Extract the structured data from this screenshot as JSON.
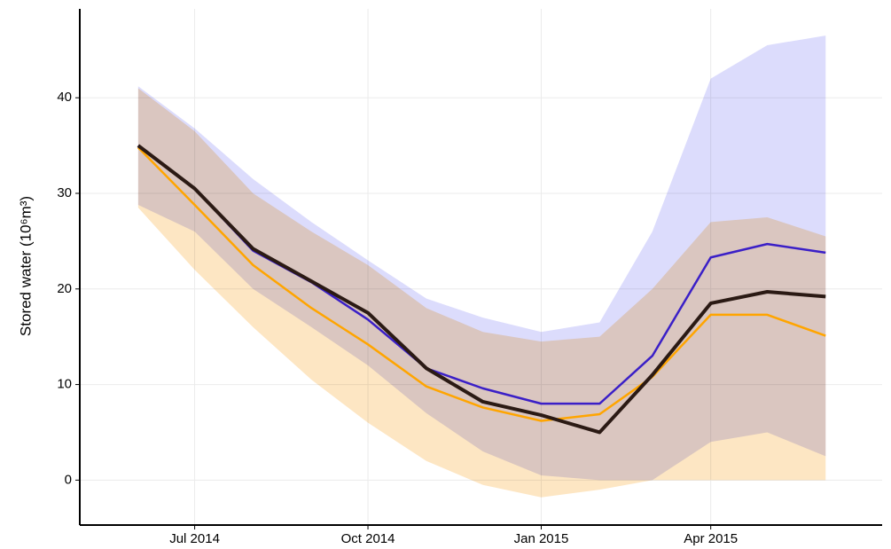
{
  "chart_data": {
    "type": "line",
    "y_label": "Stored water (10⁶m³)",
    "x": [
      "2014-06",
      "2014-07",
      "2014-08",
      "2014-09",
      "2014-10",
      "2014-11",
      "2014-12",
      "2015-01",
      "2015-02",
      "2015-03",
      "2015-04",
      "2015-05",
      "2015-06"
    ],
    "series": [
      {
        "color": "#3a1fc7",
        "band_color": "#dcdcfc",
        "values": [
          35,
          30.5,
          24,
          20.7,
          16.8,
          11.7,
          9.6,
          8.0,
          8.0,
          13,
          23.3,
          24.7,
          23.8
        ],
        "lower": [
          28.8,
          26,
          20,
          16,
          12,
          7,
          3,
          0.5,
          0,
          0,
          4,
          5,
          2.5
        ],
        "upper": [
          41.2,
          36.8,
          31.5,
          27,
          23,
          19,
          17,
          15.5,
          16.5,
          26,
          42,
          45.5,
          46.5
        ]
      },
      {
        "color": "#ffa500",
        "band_color": "#fde6c3",
        "values": [
          34.8,
          28.8,
          22.5,
          18.0,
          14.2,
          9.8,
          7.6,
          6.2,
          6.9,
          10.8,
          17.3,
          17.3,
          15.1
        ],
        "lower": [
          28.5,
          22,
          16,
          10.5,
          6,
          2,
          -0.5,
          -1.8,
          -1,
          0,
          0,
          0,
          0
        ],
        "upper": [
          41,
          36.5,
          30,
          26,
          22.5,
          18,
          15.5,
          14.5,
          15,
          20,
          27,
          27.5,
          25.5
        ]
      },
      {
        "color": "#2b1a14",
        "values": [
          35,
          30.5,
          24.2,
          20.8,
          17.5,
          11.7,
          8.2,
          6.8,
          5.0,
          11,
          18.5,
          19.7,
          19.2
        ]
      }
    ],
    "xlim": [
      "2014-05",
      "2015-07"
    ],
    "xticks": [
      {
        "value": "2014-07",
        "label": "Jul 2014"
      },
      {
        "value": "2014-10",
        "label": "Oct 2014"
      },
      {
        "value": "2015-01",
        "label": "Jan 2015"
      },
      {
        "value": "2015-04",
        "label": "Apr 2015"
      }
    ],
    "ylim": [
      -4.7,
      49.3
    ],
    "yticks": [
      0,
      10,
      20,
      30,
      40
    ],
    "grid": true
  }
}
